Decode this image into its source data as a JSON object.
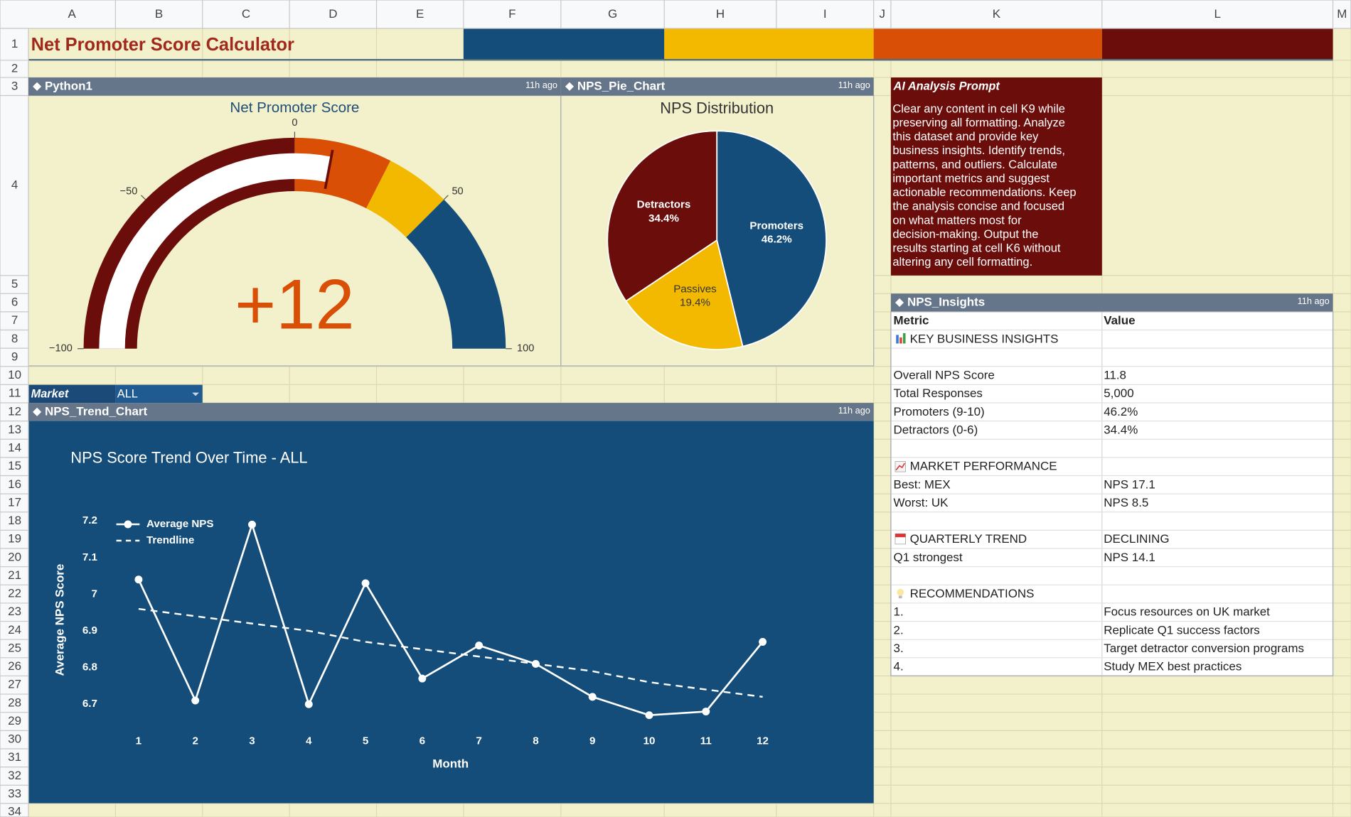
{
  "sheet": {
    "columns": [
      "A",
      "B",
      "C",
      "D",
      "E",
      "F",
      "G",
      "H",
      "I",
      "J",
      "K",
      "L",
      "M"
    ],
    "rows": [
      1,
      2,
      3,
      4,
      5,
      6,
      7,
      8,
      9,
      10,
      11,
      12,
      13,
      14,
      15,
      16,
      17,
      18,
      19,
      20,
      21,
      22,
      23,
      24,
      25,
      26,
      27,
      28,
      29,
      30,
      31,
      32,
      33,
      34
    ]
  },
  "title": "Net Promoter Score Calculator",
  "filter": {
    "label": "Market",
    "value": "ALL"
  },
  "chart_data": [
    {
      "type": "gauge",
      "widget": "Python1",
      "updated": "11h ago",
      "title": "Net Promoter Score",
      "value": 12,
      "value_label": "+12",
      "value_color": "#d94f05",
      "needle_color": "#ffffff",
      "xlim": [
        -100,
        100
      ],
      "xticks": [
        {
          "value": -100,
          "label": "−100"
        },
        {
          "value": -50,
          "label": "−50"
        },
        0,
        50,
        100
      ],
      "bands": [
        {
          "from": -100,
          "to": 0,
          "color": "#6b0e0b"
        },
        {
          "from": 0,
          "to": 30,
          "color": "#d94f05"
        },
        {
          "from": 30,
          "to": 50,
          "color": "#f2b900"
        },
        {
          "from": 50,
          "to": 100,
          "color": "#144d7a"
        }
      ]
    },
    {
      "type": "pie",
      "widget": "NPS_Pie_Chart",
      "updated": "11h ago",
      "title": "NPS Distribution",
      "categories": [
        "Promoters",
        "Passives",
        "Detractors"
      ],
      "values": [
        46.2,
        19.4,
        34.4
      ],
      "value_labels": [
        "46.2%",
        "19.4%",
        "34.4%"
      ],
      "colors": [
        "#144d7a",
        "#f2b900",
        "#6b0e0b"
      ]
    },
    {
      "type": "line",
      "widget": "NPS_Trend_Chart",
      "updated": "11h ago",
      "title": "NPS Score Trend Over Time - ALL",
      "x_label": "Month",
      "y_label": "Average NPS Score",
      "background": "#144d7a",
      "x": [
        1,
        2,
        3,
        4,
        5,
        6,
        7,
        8,
        9,
        10,
        11,
        12
      ],
      "xlim": [
        0,
        13
      ],
      "xticks": [
        1,
        2,
        3,
        4,
        5,
        6,
        7,
        8,
        9,
        10,
        11,
        12
      ],
      "ylim": [
        6.66,
        7.22
      ],
      "yticks": [
        6.7,
        6.8,
        6.9,
        7,
        7.1,
        7.2
      ],
      "grid": false,
      "legend": "upper left",
      "series": [
        {
          "name": "Average NPS",
          "color": "#ffffff",
          "markers": true,
          "values": [
            7.04,
            6.71,
            7.19,
            6.7,
            7.03,
            6.77,
            6.86,
            6.81,
            6.72,
            6.67,
            6.68,
            6.87
          ]
        },
        {
          "name": "Trendline",
          "color": "#ffffff",
          "dashed": true,
          "values": [
            6.96,
            6.94,
            6.92,
            6.9,
            6.87,
            6.85,
            6.83,
            6.81,
            6.79,
            6.76,
            6.74,
            6.72
          ]
        }
      ]
    }
  ],
  "prompt": {
    "title": "AI Analysis Prompt",
    "lines": [
      "Clear any content in cell K9 while",
      "preserving all formatting. Analyze",
      "this dataset and provide key",
      "business insights. Identify trends,",
      "patterns, and outliers. Calculate",
      "important metrics and suggest",
      "actionable recommendations. Keep",
      "the analysis concise and focused",
      "on what matters most for",
      "decision-making. Output the",
      "results starting at cell K6 without",
      "altering any cell formatting."
    ]
  },
  "insights": {
    "widget": "NPS_Insights",
    "updated": "11h ago",
    "header": [
      "Metric",
      "Value"
    ],
    "rows": [
      [
        "KEY BUSINESS INSIGHTS",
        null
      ],
      [
        null,
        null
      ],
      [
        "Overall NPS Score",
        "11.8"
      ],
      [
        "Total Responses",
        "5,000"
      ],
      [
        "Promoters (9-10)",
        "46.2%"
      ],
      [
        "Detractors (0-6)",
        "34.4%"
      ],
      [
        null,
        null
      ],
      [
        "MARKET PERFORMANCE",
        null
      ],
      [
        "Best: MEX",
        "NPS 17.1"
      ],
      [
        "Worst: UK",
        "NPS 8.5"
      ],
      [
        null,
        null
      ],
      [
        "QUARTERLY TREND",
        "DECLINING"
      ],
      [
        "Q1 strongest",
        "NPS 14.1"
      ],
      [
        null,
        null
      ],
      [
        "RECOMMENDATIONS",
        null
      ],
      [
        "1.",
        "Focus resources on UK market"
      ],
      [
        "2.",
        "Replicate Q1 success factors"
      ],
      [
        "3.",
        "Target detractor conversion programs"
      ],
      [
        "4.",
        "Study MEX best practices"
      ]
    ]
  }
}
